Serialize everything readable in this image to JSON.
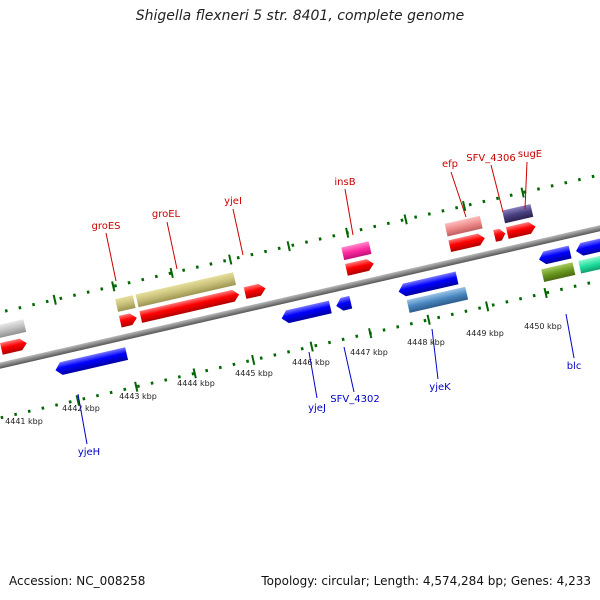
{
  "title": "Shigella flexneri 5 str. 8401, complete genome",
  "accession": "Accession: NC_008258",
  "topology": "Topology: circular; Length: 4,574,284 bp; Genes: 4,233",
  "ticks": [
    "4441 kbp",
    "4442 kbp",
    "4443 kbp",
    "4444 kbp",
    "4445 kbp",
    "4446 kbp",
    "4447 kbp",
    "4448 kbp",
    "4449 kbp",
    "4450 kbp"
  ],
  "forward_labels": [
    "groES",
    "groEL",
    "yjeI",
    "insB",
    "efp",
    "SFV_4306",
    "sugE"
  ],
  "reverse_labels": [
    "yjeH",
    "yjeJ",
    "SFV_4302",
    "yjeK",
    "blc"
  ],
  "colors": {
    "forward_gene": "#ff0000",
    "reverse_gene": "#0000ff",
    "forward_label": "#cc0000",
    "reverse_label": "#0000cc",
    "tick": "#006600",
    "backbone": "#888888",
    "groES_groEL_feature": "#c8c07a",
    "insB_feature": "#ff2aa0",
    "efp_feature": "#f08a8a",
    "sugE_feature": "#4a4080",
    "yjeK_feature": "#4a88c0",
    "blc_feature": "#6a9a20",
    "teal_feature": "#20e0a0",
    "grey_feature": "#c0c0c0"
  }
}
